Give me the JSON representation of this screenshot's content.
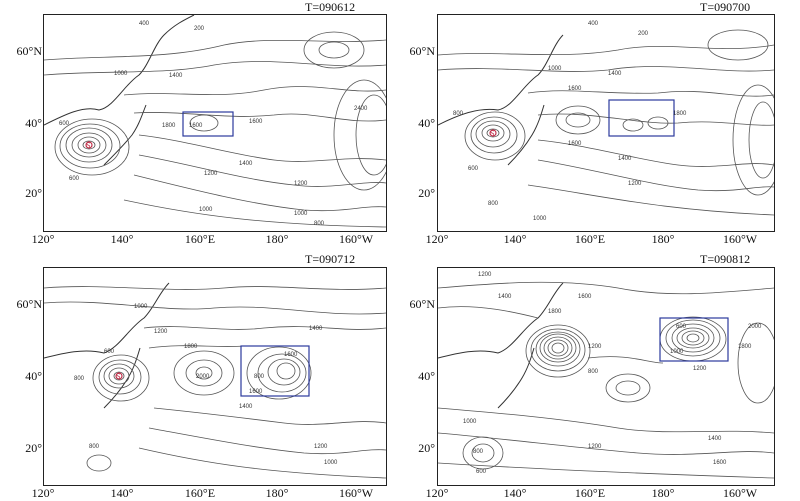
{
  "panels": [
    {
      "id": "p1",
      "time_label": "T=090612",
      "lat_labels": [
        "60°N",
        "40°",
        "20°"
      ],
      "lon_labels": [
        "120°",
        "140°",
        "160°E",
        "180°",
        "160°W"
      ],
      "contour_labels": [
        "400",
        "200",
        "600",
        "1000",
        "1400",
        "1800",
        "1600",
        "1600",
        "1400",
        "1200",
        "2400",
        "600",
        "1000",
        "1200",
        "1000",
        "800"
      ],
      "low_center": "S"
    },
    {
      "id": "p2",
      "time_label": "T=090700",
      "lat_labels": [
        "60°N",
        "40°",
        "20°"
      ],
      "lon_labels": [
        "120°",
        "140°",
        "160°E",
        "180°",
        "160°W"
      ],
      "contour_labels": [
        "400",
        "200",
        "1000",
        "1400",
        "1600",
        "800",
        "1600",
        "1800",
        "1400",
        "1200",
        "1000",
        "600",
        "800"
      ],
      "low_center": "S"
    },
    {
      "id": "p3",
      "time_label": "T=090712",
      "lat_labels": [
        "60°N",
        "40°",
        "20°"
      ],
      "lon_labels": [
        "120°",
        "140°",
        "160°E",
        "180°",
        "160°W"
      ],
      "contour_labels": [
        "600",
        "800",
        "1000",
        "1400",
        "1800",
        "1200",
        "1600",
        "2000",
        "1600",
        "1400",
        "1200",
        "1000",
        "800",
        "800"
      ],
      "low_center": "S"
    },
    {
      "id": "p4",
      "time_label": "T=090812",
      "lat_labels": [
        "60°N",
        "40°",
        "20°"
      ],
      "lon_labels": [
        "120°",
        "140°",
        "160°E",
        "180°",
        "160°W"
      ],
      "contour_labels": [
        "1200",
        "1400",
        "1600",
        "1800",
        "1200",
        "800",
        "600",
        "1000",
        "1200",
        "1400",
        "1600",
        "1800",
        "2000",
        "1000",
        "1200",
        "800",
        "600"
      ],
      "low_center": ""
    }
  ],
  "colors": {
    "contour": "#555555",
    "box": "#2b3a9c",
    "low_marker": "#c0304a",
    "frame": "#222222"
  }
}
